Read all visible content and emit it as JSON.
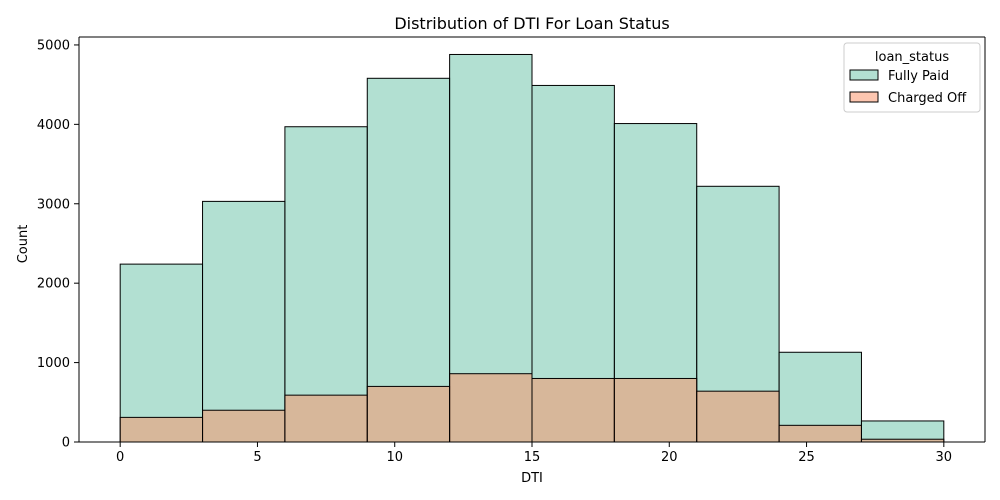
{
  "chart_data": {
    "type": "bar",
    "title": "Distribution of DTI For Loan Status",
    "xlabel": "DTI",
    "ylabel": "Count",
    "xlim": [
      -1.5,
      31.5
    ],
    "ylim": [
      0,
      5100
    ],
    "xticks": [
      0,
      5,
      10,
      15,
      20,
      25,
      30
    ],
    "yticks": [
      0,
      1000,
      2000,
      3000,
      4000,
      5000
    ],
    "bin_edges": [
      0,
      3,
      6,
      9,
      12,
      15,
      18,
      21,
      24,
      27,
      30
    ],
    "legend": {
      "title": "loan_status",
      "position": "top-right"
    },
    "series": [
      {
        "name": "Fully Paid",
        "color": "#66c2a5",
        "values": [
          2240,
          3030,
          3970,
          4580,
          4880,
          4490,
          4010,
          3220,
          1130,
          265
        ]
      },
      {
        "name": "Charged Off",
        "color": "#fc8d62",
        "values": [
          310,
          400,
          590,
          700,
          860,
          800,
          800,
          640,
          210,
          35
        ]
      }
    ]
  }
}
